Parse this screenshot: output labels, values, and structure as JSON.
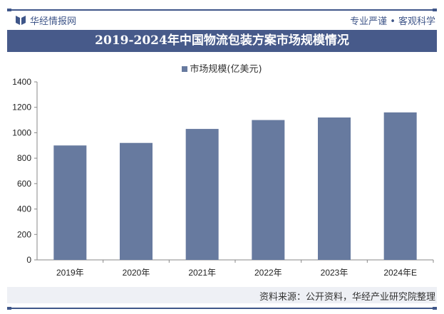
{
  "header": {
    "brand": "华经情报网",
    "slogan": "专业严谨 • 客观科学"
  },
  "source": "资料来源：公开资料，华经产业研究院整理",
  "watermark": "华经产业研究院",
  "colors": {
    "bar": "#677a9f",
    "title_bg": "#475a8a"
  },
  "chart_data": {
    "type": "bar",
    "title": "2019-2024年中国物流包装方案市场规模情况",
    "legend_position": "top",
    "categories": [
      "2019年",
      "2020年",
      "2021年",
      "2022年",
      "2023年",
      "2024年E"
    ],
    "series": [
      {
        "name": "市场规模(亿美元)",
        "values": [
          900,
          920,
          1030,
          1100,
          1120,
          1160
        ]
      }
    ],
    "ylim": [
      0,
      1400
    ],
    "yticks": [
      0,
      200,
      400,
      600,
      800,
      1000,
      1200,
      1400
    ],
    "grid": false
  }
}
